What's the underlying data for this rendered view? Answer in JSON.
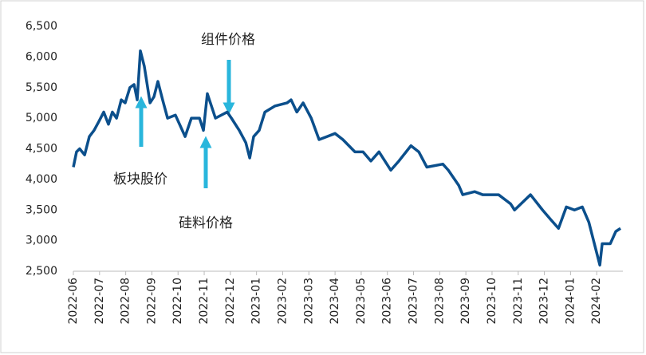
{
  "chart_data": {
    "type": "line",
    "x": [
      0,
      0.12,
      0.24,
      0.43,
      0.61,
      0.79,
      0.98,
      1.16,
      1.34,
      1.49,
      1.65,
      1.83,
      1.98,
      2.16,
      2.32,
      2.44,
      2.56,
      2.71,
      2.93,
      3.08,
      3.23,
      3.41,
      3.6,
      3.9,
      4.27,
      4.51,
      4.82,
      4.97,
      5.12,
      5.43,
      5.88,
      6.04,
      6.34,
      6.59,
      6.74,
      6.89,
      7.1,
      7.32,
      7.71,
      8.17,
      8.32,
      8.54,
      8.78,
      9.09,
      9.39,
      9.7,
      10,
      10.3,
      10.76,
      11.07,
      11.37,
      11.68,
      12.13,
      12.44,
      12.9,
      13.2,
      13.51,
      14.12,
      14.33,
      14.73,
      14.88,
      15.34,
      15.64,
      16.25,
      16.71,
      16.86,
      17.47,
      17.93,
      18.23,
      18.54,
      18.84,
      19.15,
      19.45,
      19.7,
      19.91,
      20.12,
      20.21,
      20.52,
      20.73,
      20.91
    ],
    "values": [
      4200,
      4450,
      4500,
      4400,
      4700,
      4800,
      4950,
      5100,
      4900,
      5100,
      5000,
      5300,
      5250,
      5500,
      5550,
      5300,
      6100,
      5850,
      5250,
      5350,
      5600,
      5300,
      5000,
      5050,
      4700,
      5000,
      5000,
      4800,
      5400,
      5000,
      5100,
      5000,
      4800,
      4600,
      4350,
      4700,
      4800,
      5100,
      5200,
      5250,
      5300,
      5100,
      5250,
      5000,
      4650,
      4700,
      4750,
      4650,
      4450,
      4450,
      4300,
      4450,
      4150,
      4300,
      4550,
      4450,
      4200,
      4250,
      4150,
      3900,
      3750,
      3800,
      3750,
      3750,
      3600,
      3500,
      3750,
      3500,
      3350,
      3200,
      3550,
      3500,
      3550,
      3300,
      2950,
      2600,
      2950,
      2950,
      3150,
      3200
    ],
    "color": "#0b4f8c",
    "xlim": [
      0,
      21
    ],
    "xticks": [
      {
        "value": 0,
        "label": "2022-06"
      },
      {
        "value": 1,
        "label": "2022-07"
      },
      {
        "value": 2,
        "label": "2022-08"
      },
      {
        "value": 3,
        "label": "2022-09"
      },
      {
        "value": 4,
        "label": "2022-10"
      },
      {
        "value": 5,
        "label": "2022-11"
      },
      {
        "value": 6,
        "label": "2022-12"
      },
      {
        "value": 7,
        "label": "2023-01"
      },
      {
        "value": 8,
        "label": "2023-02"
      },
      {
        "value": 9,
        "label": "2023-03"
      },
      {
        "value": 10,
        "label": "2023-04"
      },
      {
        "value": 11,
        "label": "2023-05"
      },
      {
        "value": 12,
        "label": "2023-06"
      },
      {
        "value": 13,
        "label": "2023-07"
      },
      {
        "value": 14,
        "label": "2023-08"
      },
      {
        "value": 15,
        "label": "2023-09"
      },
      {
        "value": 16,
        "label": "2023-10"
      },
      {
        "value": 17,
        "label": "2023-11"
      },
      {
        "value": 18,
        "label": "2023-12"
      },
      {
        "value": 19,
        "label": "2024-01"
      },
      {
        "value": 20,
        "label": "2024-02"
      }
    ],
    "ylim": [
      2500,
      6500
    ],
    "yticks": [
      {
        "value": 2500,
        "label": "2,500"
      },
      {
        "value": 3000,
        "label": "3,000"
      },
      {
        "value": 3500,
        "label": "3,500"
      },
      {
        "value": 4000,
        "label": "4,000"
      },
      {
        "value": 4500,
        "label": "4,500"
      },
      {
        "value": 5000,
        "label": "5,000"
      },
      {
        "value": 5500,
        "label": "5,500"
      },
      {
        "value": 6000,
        "label": "6,000"
      },
      {
        "value": 6500,
        "label": "6,500"
      }
    ],
    "annotations": [
      "组件价格",
      "板块股价",
      "硅料价格"
    ]
  }
}
